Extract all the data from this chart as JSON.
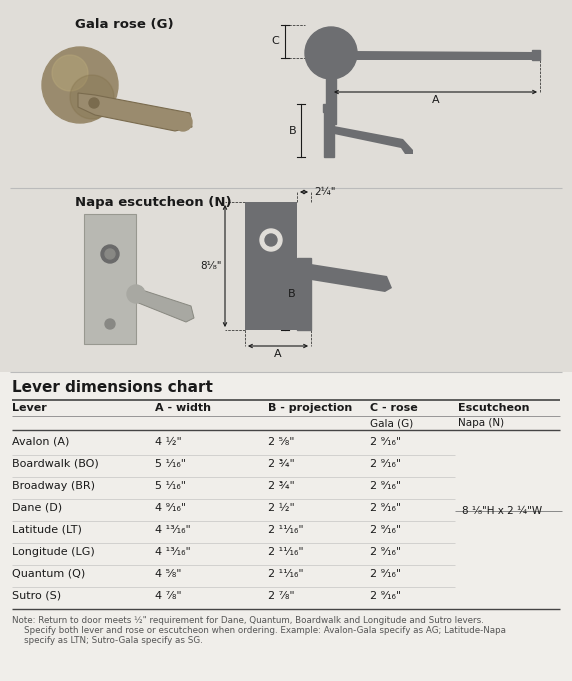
{
  "bg_color": "#e0ddd8",
  "table_bg": "#f0eeea",
  "text_dark": "#1a1a1a",
  "diagram_color": "#6d6e71",
  "lever_photo_color": "#9a8b6e",
  "lever_photo_dark": "#7a6b4e",
  "napa_photo_color": "#c0bfba",
  "napa_photo_dark": "#a0a09a",
  "title_top": "Lever dimensions chart",
  "col_headers": [
    "Lever",
    "A - width",
    "B - projection",
    "C - rose",
    "Escutcheon"
  ],
  "sub_col3": "Gala (G)",
  "sub_col4": "Napa (N)",
  "rows": [
    [
      "Avalon (A)",
      "4 ½\"",
      "2 ⁵⁄₈\"",
      "2 ⁹⁄₁₆\""
    ],
    [
      "Boardwalk (BO)",
      "5 ¹⁄₁₆\"",
      "2 ¾\"",
      "2 ⁹⁄₁₆\""
    ],
    [
      "Broadway (BR)",
      "5 ¹⁄₁₆\"",
      "2 ¾\"",
      "2 ⁹⁄₁₆\""
    ],
    [
      "Dane (D)",
      "4 ⁹⁄₁₆\"",
      "2 ½\"",
      "2 ⁹⁄₁₆\""
    ],
    [
      "Latitude (LT)",
      "4 ¹³⁄₁₆\"",
      "2 ¹¹⁄₁₆\"",
      "2 ⁹⁄₁₆\""
    ],
    [
      "Longitude (LG)",
      "4 ¹³⁄₁₆\"",
      "2 ¹¹⁄₁₆\"",
      "2 ⁹⁄₁₆\""
    ],
    [
      "Quantum (Q)",
      "4 ⁵⁄₈\"",
      "2 ¹¹⁄₁₆\"",
      "2 ⁹⁄₁₆\""
    ],
    [
      "Sutro (S)",
      "4 ⁷⁄₈\"",
      "2 ⁷⁄₈\"",
      "2 ⁹⁄₁₆\""
    ]
  ],
  "escutcheon_label": "8 ¹⁄₈\"H x 2 ¼\"W",
  "note_line1": "Note: Return to door meets ½\" requirement for Dane, Quantum, Boardwalk and Longitude and Sutro levers.",
  "note_line2": "Specify both lever and rose or escutcheon when ordering. Example: Avalon-Gala specify as AG; Latitude-Napa",
  "note_line3": "specify as LTN; Sutro-Gala specify as SG.",
  "gala_label": "Gala rose (G)",
  "napa_label": "Napa escutcheon (N)",
  "dim_2_1_4": "2¼\"",
  "dim_8_1_8": "8¹⁄₈\""
}
